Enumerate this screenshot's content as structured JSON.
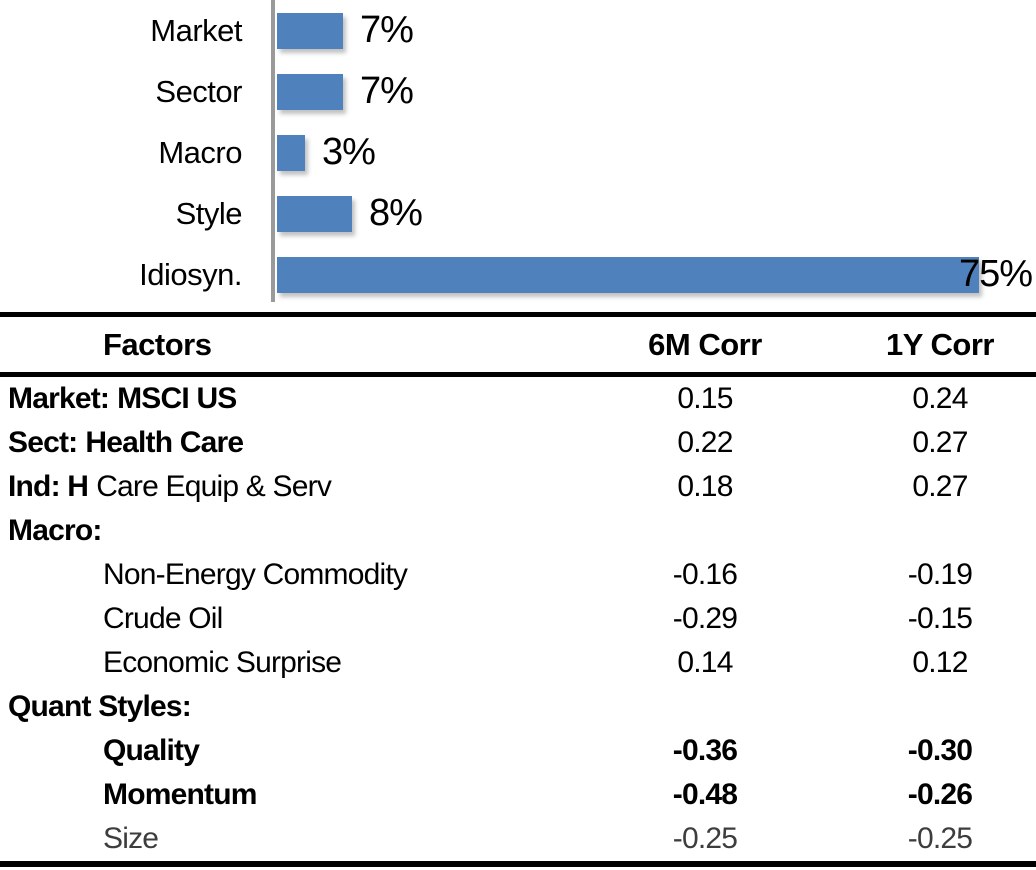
{
  "chart_data": {
    "type": "bar",
    "orientation": "horizontal",
    "categories": [
      "Market",
      "Sector",
      "Macro",
      "Style",
      "Idiosyn."
    ],
    "values": [
      7,
      7,
      3,
      8,
      75
    ],
    "value_labels": [
      "7%",
      "7%",
      "3%",
      "8%",
      "75%"
    ],
    "bar_color": "#4f81bd",
    "axis_color": "#9a9a9a",
    "xlim": [
      0,
      80
    ],
    "grid": false,
    "legend": "none",
    "value_label_position": "end-of-bar"
  },
  "table": {
    "headers": {
      "factors": "Factors",
      "col_6m": "6M Corr",
      "col_1y": "1Y Corr"
    },
    "rows": [
      {
        "prefix": "Market:",
        "label": "MSCI US",
        "six_m": "0.15",
        "one_y": "0.24",
        "indent": false,
        "prefix_bold": true,
        "label_bold": true,
        "num_bold": false,
        "muted": false
      },
      {
        "prefix": "Sect:",
        "label": "Health Care",
        "six_m": "0.22",
        "one_y": "0.27",
        "indent": false,
        "prefix_bold": true,
        "label_bold": true,
        "num_bold": false,
        "muted": false
      },
      {
        "prefix": "Ind: H",
        "label": "Care Equip & Serv",
        "six_m": "0.18",
        "one_y": "0.27",
        "indent": false,
        "prefix_bold": true,
        "label_bold": false,
        "num_bold": false,
        "muted": false
      },
      {
        "prefix": "Macro:",
        "label": "",
        "six_m": "",
        "one_y": "",
        "indent": false,
        "prefix_bold": true,
        "label_bold": false,
        "num_bold": false,
        "muted": false
      },
      {
        "prefix": "",
        "label": "Non-Energy Commodity",
        "six_m": "-0.16",
        "one_y": "-0.19",
        "indent": true,
        "prefix_bold": false,
        "label_bold": false,
        "num_bold": false,
        "muted": false
      },
      {
        "prefix": "",
        "label": "Crude Oil",
        "six_m": "-0.29",
        "one_y": "-0.15",
        "indent": true,
        "prefix_bold": false,
        "label_bold": false,
        "num_bold": false,
        "muted": false
      },
      {
        "prefix": "",
        "label": "Economic Surprise",
        "six_m": "0.14",
        "one_y": "0.12",
        "indent": true,
        "prefix_bold": false,
        "label_bold": false,
        "num_bold": false,
        "muted": false
      },
      {
        "prefix": "Quant Styles:",
        "label": "",
        "six_m": "",
        "one_y": "",
        "indent": false,
        "prefix_bold": true,
        "label_bold": false,
        "num_bold": false,
        "muted": false
      },
      {
        "prefix": "",
        "label": "Quality",
        "six_m": "-0.36",
        "one_y": "-0.30",
        "indent": true,
        "prefix_bold": false,
        "label_bold": true,
        "num_bold": true,
        "muted": false
      },
      {
        "prefix": "",
        "label": "Momentum",
        "six_m": "-0.48",
        "one_y": "-0.26",
        "indent": true,
        "prefix_bold": false,
        "label_bold": true,
        "num_bold": true,
        "muted": false
      },
      {
        "prefix": "",
        "label": "Size",
        "six_m": "-0.25",
        "one_y": "-0.25",
        "indent": true,
        "prefix_bold": false,
        "label_bold": false,
        "num_bold": false,
        "muted": true
      }
    ]
  }
}
